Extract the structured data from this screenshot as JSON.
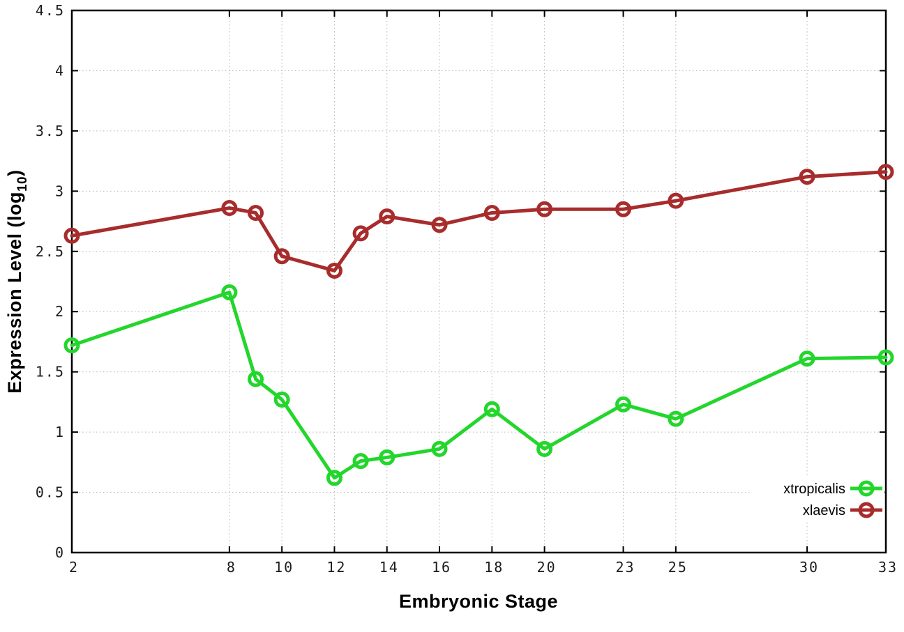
{
  "figure": {
    "background_color": "#ffffff",
    "border_color": "#000000",
    "grid_color": "#b5b5b5"
  },
  "chart_data": {
    "type": "line",
    "title": "",
    "xlabel": "Embryonic Stage",
    "ylabel": "Expression Level (log10)",
    "ylabel_parts": {
      "main": "Expression Level (log",
      "sub": "10",
      "end": ")"
    },
    "xlim": [
      2,
      33
    ],
    "ylim": [
      0,
      4.5
    ],
    "grid": true,
    "grid_style": "dotted",
    "legend_position": "bottom-right",
    "marker": "open-circle",
    "x_ticks": {
      "values": [
        2,
        8,
        10,
        12,
        14,
        16,
        18,
        20,
        23,
        25,
        30,
        33
      ],
      "labels": [
        "2",
        "8",
        "10",
        "12",
        "14",
        "16",
        "18",
        "20",
        "23",
        "25",
        "30",
        "33"
      ]
    },
    "y_ticks": {
      "values": [
        0,
        0.5,
        1,
        1.5,
        2,
        2.5,
        3,
        3.5,
        4,
        4.5
      ],
      "labels": [
        "0",
        "0.5",
        "1",
        "1.5",
        "2",
        "2.5",
        "3",
        "3.5",
        "4",
        "4.5"
      ]
    },
    "x": [
      2,
      8,
      9,
      10,
      12,
      13,
      14,
      16,
      18,
      20,
      23,
      25,
      30,
      33
    ],
    "series": [
      {
        "name": "xtropicalis",
        "color": "#23d62c",
        "values": [
          1.72,
          2.16,
          1.44,
          1.27,
          0.62,
          0.76,
          0.79,
          0.86,
          1.19,
          0.86,
          1.23,
          1.11,
          1.61,
          1.62
        ]
      },
      {
        "name": "xlaevis",
        "color": "#a82c2c",
        "values": [
          2.63,
          2.86,
          2.82,
          2.46,
          2.34,
          2.65,
          2.79,
          2.72,
          2.82,
          2.85,
          2.85,
          2.92,
          3.12,
          3.16
        ]
      }
    ]
  }
}
